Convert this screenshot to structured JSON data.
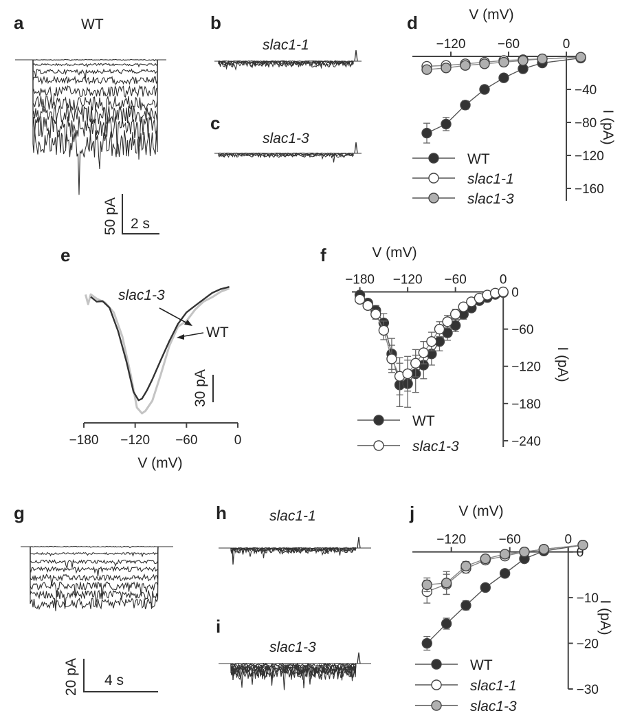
{
  "colors": {
    "wt": "#333333",
    "mutant_open": "#ffffff",
    "mutant_grey": "#b0b0b0",
    "axis": "#444444",
    "light_trace": "#c4c4c4"
  },
  "panels": {
    "a": {
      "label": "a",
      "title": "WT",
      "scale_y": "50 pA",
      "scale_x": "2 s"
    },
    "b": {
      "label": "b",
      "title": "slac1-1"
    },
    "c": {
      "label": "c",
      "title": "slac1-3"
    },
    "e": {
      "label": "e",
      "arrow_label_1": "slac1-3",
      "arrow_label_2": "WT",
      "scale_y": "30 pA"
    },
    "g": {
      "label": "g",
      "scale_y": "20 pA",
      "scale_x": "4 s"
    },
    "h": {
      "label": "h",
      "title": "slac1-1"
    },
    "i": {
      "label": "i",
      "title": "slac1-3"
    }
  },
  "chart_data": [
    {
      "id": "d",
      "panel_label": "d",
      "type": "scatter",
      "xlabel": "V (mV)",
      "ylabel": "I (pA)",
      "xlim": [
        -160,
        15
      ],
      "ylim": [
        -175,
        5
      ],
      "xticks": [
        -120,
        -60,
        0
      ],
      "xtick_labels": [
        "−120",
        "−60",
        "0"
      ],
      "yticks": [
        -40,
        -80,
        -120,
        -160
      ],
      "ytick_labels": [
        "−40",
        "−80",
        "−120",
        "−160"
      ],
      "legend": "bottom-left",
      "series": [
        {
          "name": "WT",
          "style": "filled",
          "x": [
            -145,
            -125,
            -105,
            -85,
            -65,
            -45,
            -25,
            15
          ],
          "y": [
            -93,
            -82,
            -59,
            -40,
            -26,
            -15,
            -8,
            -2
          ],
          "err": [
            12,
            8,
            5,
            4,
            3,
            2,
            2,
            1
          ]
        },
        {
          "name": "slac1-1",
          "style": "open",
          "x": [
            -145,
            -125,
            -105,
            -85,
            -65,
            -45,
            -25,
            15
          ],
          "y": [
            -12,
            -11,
            -9,
            -7,
            -5,
            -4,
            -3,
            -1
          ],
          "err": [
            3,
            3,
            2,
            2,
            2,
            2,
            1,
            1
          ]
        },
        {
          "name": "slac1-3",
          "style": "grey",
          "x": [
            -145,
            -125,
            -105,
            -85,
            -65,
            -45,
            -25,
            15
          ],
          "y": [
            -16,
            -14,
            -11,
            -9,
            -7,
            -5,
            -3,
            -1
          ],
          "err": [
            3,
            3,
            2,
            2,
            2,
            2,
            1,
            1
          ]
        }
      ]
    },
    {
      "id": "e",
      "panel_label": "e",
      "type": "line",
      "xlabel": "V (mV)",
      "ylabel": "",
      "xlim": [
        -180,
        0
      ],
      "ylim": [
        -175,
        0
      ],
      "xticks": [
        -180,
        -120,
        -60,
        0
      ],
      "xtick_labels": [
        "−180",
        "−120",
        "−60",
        "0"
      ],
      "series": [
        {
          "name": "WT",
          "style": "light",
          "x": [
            -178,
            -175,
            -172,
            -165,
            -155,
            -145,
            -135,
            -125,
            -118,
            -112,
            -108,
            -100,
            -90,
            -80,
            -70,
            -60,
            -50,
            -40,
            -30,
            -20,
            -10
          ],
          "y": [
            -12,
            -25,
            -10,
            -18,
            -22,
            -35,
            -68,
            -118,
            -160,
            -168,
            -165,
            -150,
            -115,
            -78,
            -55,
            -45,
            -32,
            -22,
            -14,
            -8,
            -4
          ]
        },
        {
          "name": "slac1-3",
          "style": "dark",
          "x": [
            -172,
            -165,
            -158,
            -150,
            -140,
            -130,
            -122,
            -116,
            -112,
            -106,
            -100,
            -90,
            -80,
            -70,
            -60,
            -50,
            -40,
            -30,
            -20,
            -10
          ],
          "y": [
            -15,
            -20,
            -22,
            -30,
            -60,
            -102,
            -138,
            -150,
            -148,
            -136,
            -122,
            -96,
            -72,
            -52,
            -36,
            -25,
            -17,
            -10,
            -5,
            -2
          ]
        }
      ]
    },
    {
      "id": "f",
      "panel_label": "f",
      "type": "scatter",
      "xlabel": "V (mV)",
      "ylabel": "I (pA)",
      "xlim": [
        -190,
        5
      ],
      "ylim": [
        -250,
        5
      ],
      "xticks": [
        -180,
        -120,
        -60,
        0
      ],
      "xtick_labels": [
        "−180",
        "−120",
        "−60",
        "0"
      ],
      "yticks": [
        0,
        -60,
        -120,
        -180,
        -240
      ],
      "ytick_labels": [
        "0",
        "−60",
        "−120",
        "−180",
        "−240"
      ],
      "legend": "bottom-left",
      "series": [
        {
          "name": "WT",
          "style": "filled",
          "x": [
            -180,
            -170,
            -160,
            -150,
            -140,
            -130,
            -120,
            -110,
            -100,
            -90,
            -80,
            -70,
            -60,
            -50,
            -40,
            -30,
            -20,
            -10,
            0
          ],
          "y": [
            -5,
            -18,
            -30,
            -50,
            -100,
            -150,
            -148,
            -132,
            -118,
            -100,
            -80,
            -66,
            -54,
            -36,
            -26,
            -14,
            -9,
            -4,
            -1
          ],
          "err": [
            4,
            6,
            8,
            15,
            25,
            35,
            38,
            30,
            22,
            18,
            15,
            12,
            10,
            8,
            6,
            5,
            4,
            3,
            2
          ]
        },
        {
          "name": "slac1-3",
          "style": "open",
          "x": [
            -180,
            -170,
            -160,
            -150,
            -140,
            -130,
            -120,
            -110,
            -100,
            -90,
            -80,
            -70,
            -60,
            -50,
            -40,
            -30,
            -20,
            -10,
            0
          ],
          "y": [
            -12,
            -22,
            -36,
            -62,
            -108,
            -136,
            -132,
            -115,
            -98,
            -80,
            -60,
            -48,
            -36,
            -24,
            -16,
            -10,
            -5,
            -2,
            0
          ],
          "err": [
            4,
            6,
            8,
            15,
            22,
            30,
            28,
            22,
            18,
            15,
            12,
            10,
            8,
            6,
            5,
            4,
            3,
            2,
            1
          ]
        }
      ]
    },
    {
      "id": "j",
      "panel_label": "j",
      "type": "scatter",
      "xlabel": "V (mV)",
      "ylabel": "I (pA)",
      "xlim": [
        -160,
        15
      ],
      "ylim": [
        -30,
        1
      ],
      "xticks": [
        -120,
        -60,
        0
      ],
      "xtick_labels": [
        "−120",
        "−60",
        "0"
      ],
      "yticks": [
        0,
        -10,
        -20,
        -30
      ],
      "ytick_labels": [
        "0",
        "−10",
        "−20",
        "−30"
      ],
      "legend": "bottom-left",
      "series": [
        {
          "name": "WT",
          "style": "filled",
          "x": [
            -145,
            -125,
            -105,
            -85,
            -65,
            -45,
            -25,
            15
          ],
          "y": [
            -20,
            -15.7,
            -11.7,
            -7.8,
            -4.7,
            -1.5,
            0.2,
            1.5
          ],
          "err": [
            1.5,
            1.2,
            1,
            0.8,
            0.6,
            0.4,
            0.3,
            0.3
          ]
        },
        {
          "name": "slac1-1",
          "style": "open",
          "x": [
            -145,
            -125,
            -105,
            -85,
            -65,
            -45,
            -25,
            15
          ],
          "y": [
            -8.7,
            -7.1,
            -3.6,
            -1.8,
            -0.9,
            0,
            0.6,
            1.5
          ],
          "err": [
            2.5,
            2.2,
            1,
            0.6,
            0.4,
            0.3,
            0.3,
            0.3
          ]
        },
        {
          "name": "slac1-3",
          "style": "grey",
          "x": [
            -145,
            -125,
            -105,
            -85,
            -65,
            -45,
            -25,
            15
          ],
          "y": [
            -7.2,
            -6.8,
            -3.1,
            -1.5,
            -0.5,
            0,
            0.6,
            1.5
          ],
          "err": [
            1.5,
            2.5,
            1,
            0.6,
            0.4,
            0.3,
            0.3,
            0.3
          ]
        }
      ]
    }
  ]
}
